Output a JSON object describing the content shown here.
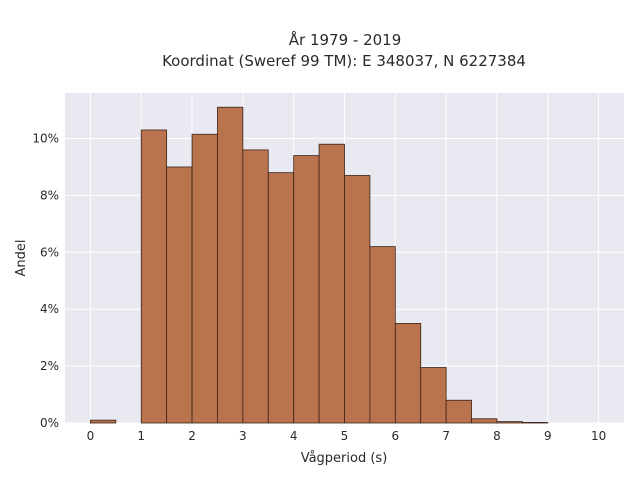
{
  "chart_data": {
    "type": "bar",
    "title": "År 1979 - 2019",
    "subtitle": "Koordinat (Sweref 99 TM): E 348037, N 6227384",
    "xlabel": "Vågperiod (s)",
    "ylabel": "Andel",
    "bin_width": 0.5,
    "bins_start": [
      0,
      0.5,
      1,
      1.5,
      2,
      2.5,
      3,
      3.5,
      4,
      4.5,
      5,
      5.5,
      6,
      6.5,
      7,
      7.5,
      8,
      8.5,
      9,
      9.5
    ],
    "values": [
      0.1,
      0,
      10.3,
      9.0,
      10.15,
      11.1,
      9.6,
      8.8,
      9.4,
      9.8,
      8.7,
      6.2,
      3.5,
      1.95,
      0.8,
      0.15,
      0.05,
      0.02,
      0,
      0
    ],
    "xlim": [
      -0.5,
      10.5
    ],
    "ylim": [
      0,
      11.6
    ],
    "x_ticks": [
      0,
      1,
      2,
      3,
      4,
      5,
      6,
      7,
      8,
      9,
      10
    ],
    "x_tick_labels": [
      "0",
      "1",
      "2",
      "3",
      "4",
      "5",
      "6",
      "7",
      "8",
      "9",
      "10"
    ],
    "y_ticks": [
      0,
      2,
      4,
      6,
      8,
      10
    ],
    "y_tick_labels": [
      "0%",
      "2%",
      "4%",
      "6%",
      "8%",
      "10%"
    ],
    "grid": true,
    "colors": {
      "bar": "#b9734d",
      "plot_bg": "#e9e9f1",
      "grid": "#ffffff"
    }
  }
}
